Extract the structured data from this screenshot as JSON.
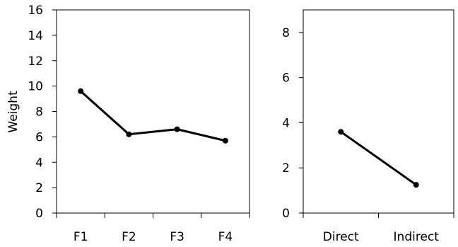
{
  "chart_data": [
    {
      "type": "line",
      "title": "",
      "xlabel": "",
      "ylabel": "Weight",
      "categories": [
        "F1",
        "F2",
        "F3",
        "F4"
      ],
      "series": [
        {
          "values": [
            9.6,
            6.2,
            6.6,
            5.7
          ]
        }
      ],
      "ylim": [
        0,
        16
      ],
      "yticks": [
        0,
        2,
        4,
        6,
        8,
        10,
        12,
        14,
        16
      ],
      "grid": false,
      "line_color": "#000000"
    },
    {
      "type": "line",
      "title": "",
      "xlabel": "",
      "ylabel": "",
      "categories": [
        "Direct",
        "Indirect"
      ],
      "series": [
        {
          "values": [
            3.6,
            1.25
          ]
        }
      ],
      "ylim": [
        0,
        9
      ],
      "yticks": [
        0,
        2,
        4,
        6,
        8
      ],
      "grid": false,
      "line_color": "#000000"
    }
  ]
}
